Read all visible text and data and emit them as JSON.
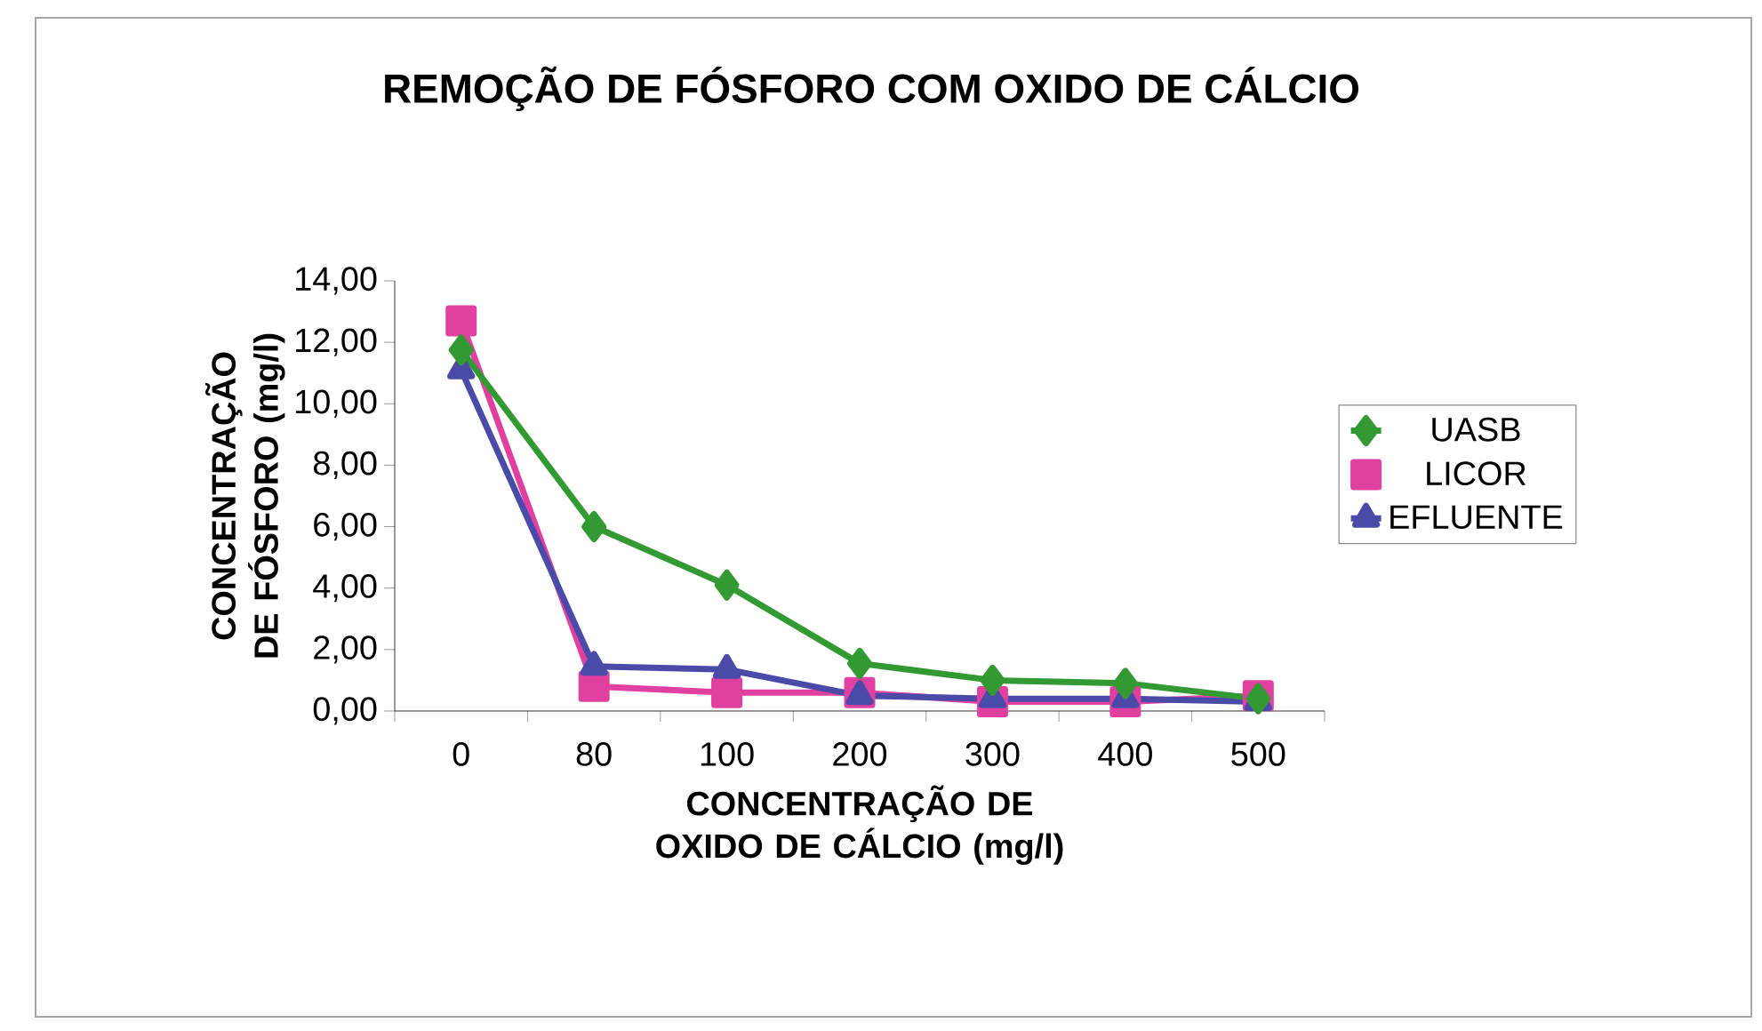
{
  "chart_data": {
    "type": "line",
    "title": "REMOÇÃO DE FÓSFORO COM OXIDO DE CÁLCIO",
    "xlabel": "CONCENTRAÇÃO DE OXIDO DE CÁLCIO (mg/l)",
    "ylabel": "CONCENTRAÇÃO DE FÓSFORO (mg/l)",
    "categories": [
      "0",
      "80",
      "100",
      "200",
      "300",
      "400",
      "500"
    ],
    "series": [
      {
        "name": "UASB",
        "color": "#339933",
        "marker": "diamond",
        "values": [
          11.75,
          6.0,
          4.1,
          1.55,
          1.0,
          0.9,
          0.4
        ]
      },
      {
        "name": "LICOR",
        "color": "#e040a0",
        "marker": "square",
        "values": [
          12.7,
          0.8,
          0.6,
          0.6,
          0.3,
          0.3,
          0.5
        ]
      },
      {
        "name": "EFLUENTE",
        "color": "#4a4aa8",
        "marker": "triangle",
        "values": [
          11.1,
          1.45,
          1.35,
          0.5,
          0.4,
          0.4,
          0.3
        ]
      }
    ],
    "ylim": [
      0,
      14
    ],
    "yticks": [
      {
        "value": 0,
        "label": "0,00"
      },
      {
        "value": 2,
        "label": "2,00"
      },
      {
        "value": 4,
        "label": "4,00"
      },
      {
        "value": 6,
        "label": "6,00"
      },
      {
        "value": 8,
        "label": "8,00"
      },
      {
        "value": 10,
        "label": "10,00"
      },
      {
        "value": 12,
        "label": "12,00"
      },
      {
        "value": 14,
        "label": "14,00"
      }
    ],
    "grid": false,
    "legend": "right",
    "line_style": "solid"
  }
}
